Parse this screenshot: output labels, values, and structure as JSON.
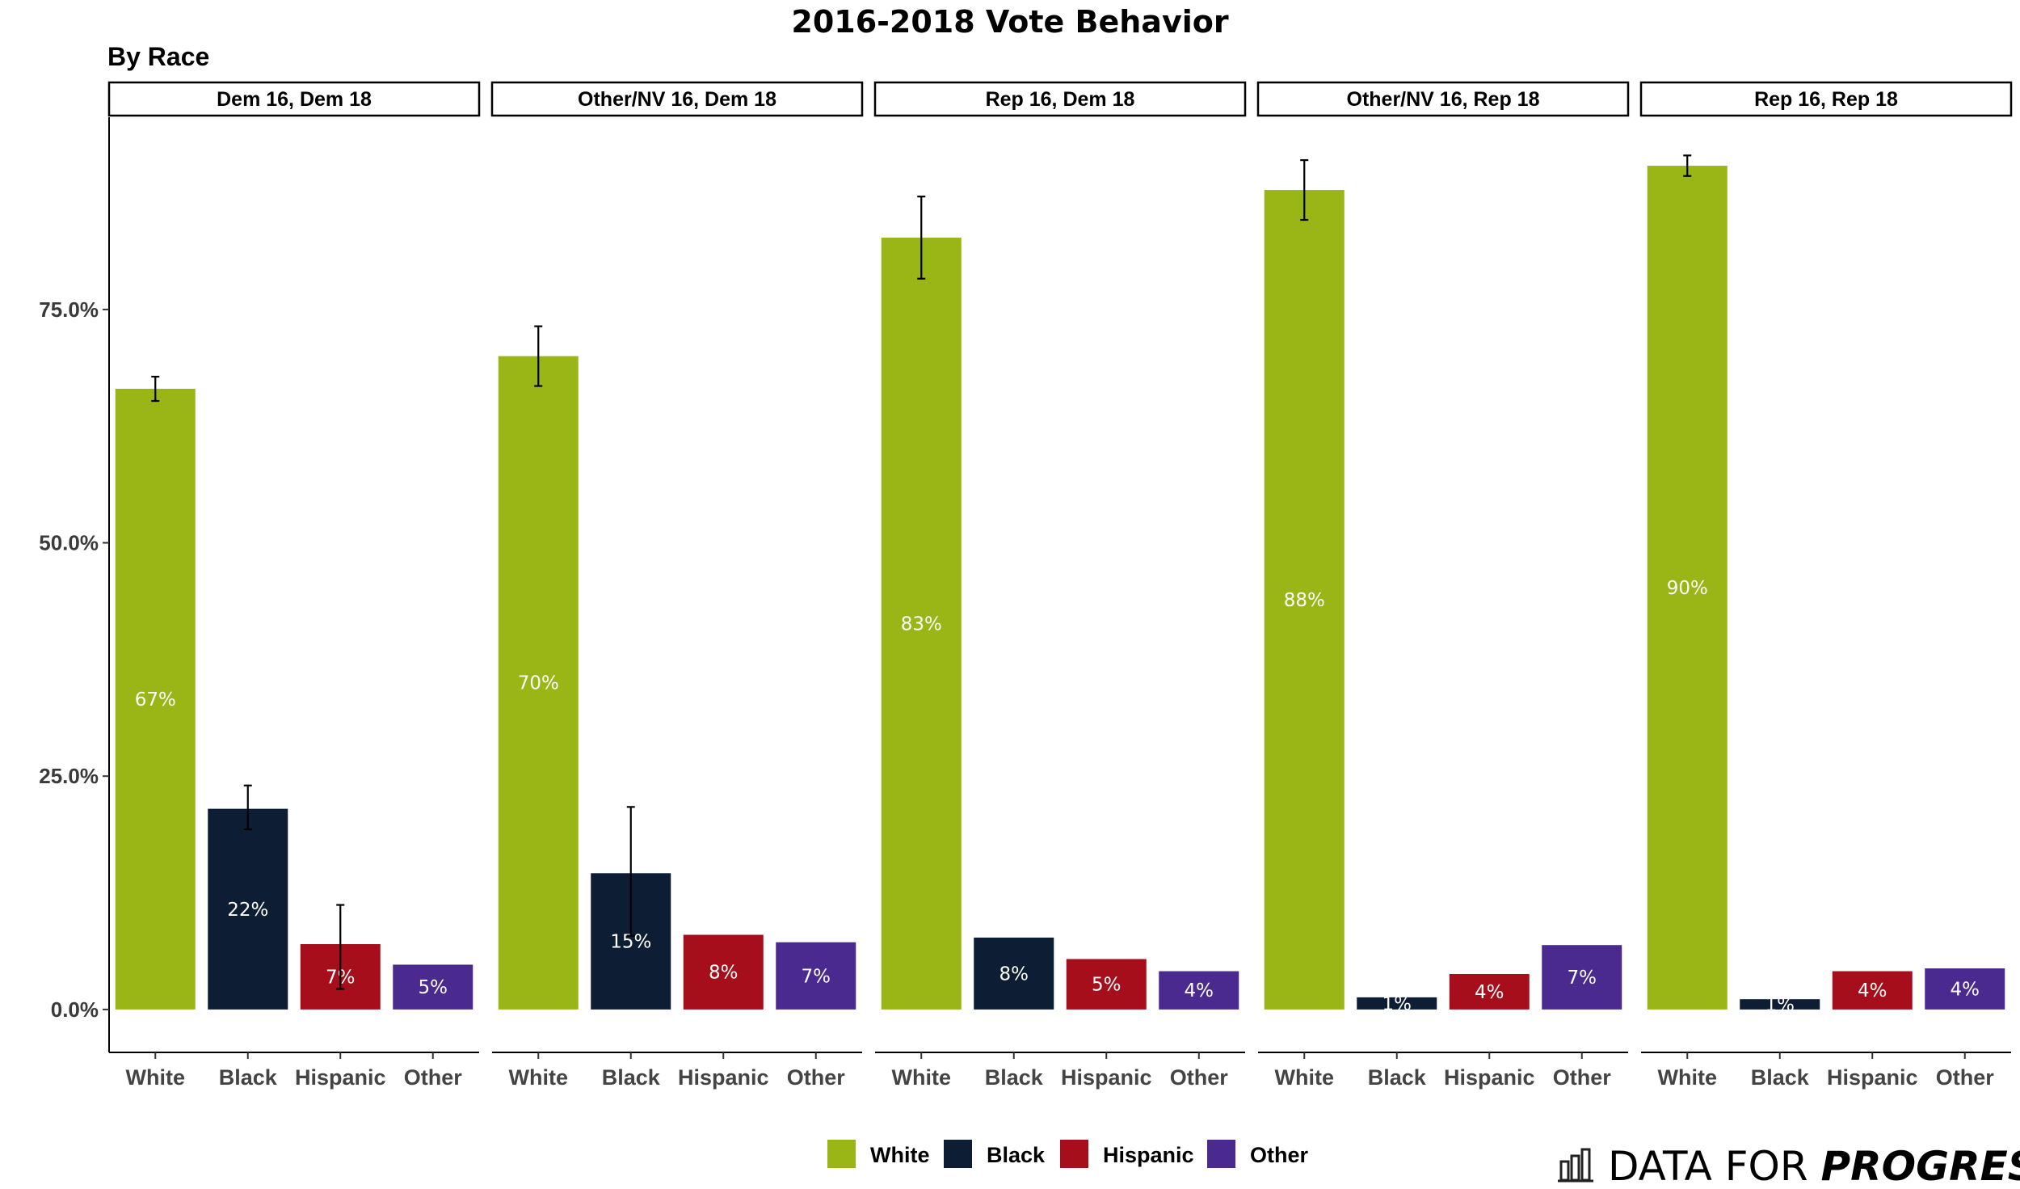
{
  "title": "2016-2018 Vote Behavior",
  "subtitle": "By Race",
  "brand": {
    "text_light": "DATA FOR ",
    "text_bold": "PROGRESS",
    "icon": "bar-chart-icon"
  },
  "colors": {
    "White": "#9ab516",
    "Black": "#0d1d33",
    "Hispanic": "#a50e1a",
    "Other": "#4b2a8f"
  },
  "legend": [
    {
      "key": "White",
      "label": "White"
    },
    {
      "key": "Black",
      "label": "Black"
    },
    {
      "key": "Hispanic",
      "label": "Hispanic"
    },
    {
      "key": "Other",
      "label": "Other"
    }
  ],
  "chart_data": {
    "type": "bar",
    "facets": [
      "Dem 16, Dem 18",
      "Other/NV 16, Dem 18",
      "Rep 16, Dem 18",
      "Other/NV 16, Rep 18",
      "Rep 16, Rep 18"
    ],
    "categories": [
      "White",
      "Black",
      "Hispanic",
      "Other"
    ],
    "y_ticks": [
      {
        "value": 0,
        "label": "0.0%"
      },
      {
        "value": 25,
        "label": "25.0%"
      },
      {
        "value": 50,
        "label": "50.0%"
      },
      {
        "value": 75,
        "label": "75.0%"
      }
    ],
    "ylim": [
      -4.6,
      95.6
    ],
    "grid": false,
    "legend_position": "bottom",
    "panels": [
      {
        "facet": "Dem 16, Dem 18",
        "values": [
          66.5,
          21.5,
          7.0,
          4.8
        ],
        "labels": [
          "67%",
          "22%",
          "7%",
          "5%"
        ],
        "error": [
          [
            65.2,
            67.8
          ],
          [
            19.3,
            24.0
          ],
          [
            2.2,
            11.2
          ],
          null
        ]
      },
      {
        "facet": "Other/NV 16, Dem 18",
        "values": [
          70.0,
          14.6,
          8.0,
          7.2
        ],
        "labels": [
          "70%",
          "15%",
          "8%",
          "7%"
        ],
        "error": [
          [
            66.8,
            73.2
          ],
          [
            7.9,
            21.7
          ],
          null,
          null
        ]
      },
      {
        "facet": "Rep 16, Dem 18",
        "values": [
          82.7,
          7.7,
          5.4,
          4.1
        ],
        "labels": [
          "83%",
          "8%",
          "5%",
          "4%"
        ],
        "error": [
          [
            78.3,
            87.1
          ],
          null,
          null,
          null
        ]
      },
      {
        "facet": "Other/NV 16, Rep 18",
        "values": [
          87.8,
          1.3,
          3.8,
          6.9
        ],
        "labels": [
          "88%",
          "1%",
          "4%",
          "7%"
        ],
        "error": [
          [
            84.6,
            91.0
          ],
          null,
          null,
          null
        ]
      },
      {
        "facet": "Rep 16, Rep 18",
        "values": [
          90.4,
          1.1,
          4.1,
          4.4
        ],
        "labels": [
          "90%",
          "1%",
          "4%",
          "4%"
        ],
        "error": [
          [
            89.3,
            91.5
          ],
          null,
          null,
          null
        ]
      }
    ]
  }
}
